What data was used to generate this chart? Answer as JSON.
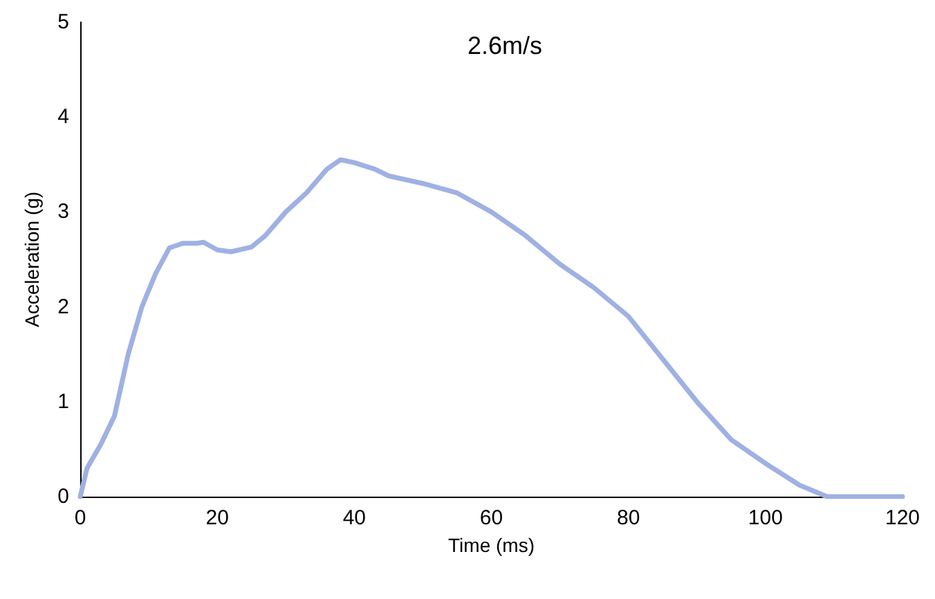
{
  "chart_data": {
    "type": "line",
    "xlabel": "Time (ms)",
    "ylabel": "Acceleration (g)",
    "annotations": [
      "2.6m/s"
    ],
    "x": [
      0,
      1,
      3,
      5,
      7,
      9,
      11,
      13,
      15,
      17,
      18,
      20,
      22,
      25,
      27,
      30,
      33,
      36,
      38,
      40,
      43,
      45,
      50,
      55,
      60,
      65,
      70,
      75,
      80,
      85,
      90,
      95,
      100,
      105,
      109,
      120
    ],
    "series": [
      {
        "color": "#9fb1e3",
        "values": [
          0,
          0.3,
          0.55,
          0.85,
          1.5,
          2.0,
          2.35,
          2.62,
          2.67,
          2.67,
          2.68,
          2.6,
          2.58,
          2.63,
          2.75,
          3.0,
          3.2,
          3.45,
          3.55,
          3.52,
          3.45,
          3.38,
          3.3,
          3.2,
          3.0,
          2.75,
          2.45,
          2.2,
          1.9,
          1.45,
          1.0,
          0.6,
          0.35,
          0.12,
          0,
          0
        ]
      }
    ],
    "xlim": [
      0,
      120
    ],
    "xticks": [
      0,
      20,
      40,
      60,
      80,
      100,
      120
    ],
    "ylim": [
      0,
      5
    ],
    "yticks": [
      0,
      1,
      2,
      3,
      4,
      5
    ],
    "grid": false,
    "marker": "none",
    "line_style": "solid"
  }
}
